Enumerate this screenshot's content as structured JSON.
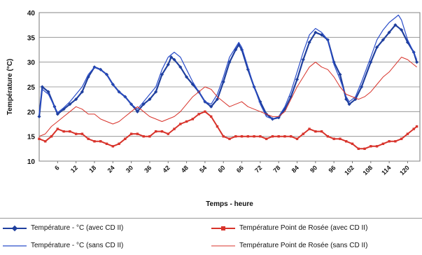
{
  "chart_data": {
    "type": "line",
    "ylabel": "Température (°C)",
    "xlabel": "Temps - heure",
    "xlim": [
      0,
      124
    ],
    "ylim": [
      10,
      40
    ],
    "yticks": [
      "10",
      "15",
      "20",
      "25",
      "30",
      "35",
      "40"
    ],
    "xticks": [
      "6",
      "12",
      "18",
      "24",
      "30",
      "36",
      "42",
      "48",
      "54",
      "60",
      "66",
      "72",
      "78",
      "84",
      "90",
      "96",
      "102",
      "108",
      "114",
      "120"
    ],
    "grid": true,
    "legend_position": "bottom",
    "series": [
      {
        "name": "Température - °C (avec CD II)",
        "color": "#1f3f9e",
        "marker": "diamond",
        "points": [
          [
            0,
            19
          ],
          [
            1,
            25
          ],
          [
            3,
            24
          ],
          [
            5,
            21
          ],
          [
            6,
            19.5
          ],
          [
            8,
            20.5
          ],
          [
            10,
            21.5
          ],
          [
            12,
            22.5
          ],
          [
            14,
            24
          ],
          [
            16,
            27
          ],
          [
            18,
            29
          ],
          [
            20,
            28.5
          ],
          [
            22,
            27.5
          ],
          [
            24,
            25.5
          ],
          [
            26,
            24
          ],
          [
            28,
            23
          ],
          [
            30,
            21.5
          ],
          [
            32,
            20
          ],
          [
            34,
            21.5
          ],
          [
            36,
            22.5
          ],
          [
            38,
            24
          ],
          [
            40,
            27.5
          ],
          [
            42,
            29.5
          ],
          [
            43,
            31
          ],
          [
            44,
            30.5
          ],
          [
            46,
            29
          ],
          [
            48,
            27
          ],
          [
            50,
            25.5
          ],
          [
            52,
            24
          ],
          [
            54,
            22
          ],
          [
            56,
            21
          ],
          [
            58,
            22.5
          ],
          [
            60,
            26
          ],
          [
            62,
            30
          ],
          [
            64,
            32.5
          ],
          [
            65,
            33.5
          ],
          [
            66,
            32.5
          ],
          [
            68,
            28.5
          ],
          [
            70,
            25
          ],
          [
            72,
            22
          ],
          [
            74,
            19.5
          ],
          [
            76,
            18.5
          ],
          [
            78,
            18.8
          ],
          [
            80,
            20.5
          ],
          [
            82,
            23
          ],
          [
            84,
            26.5
          ],
          [
            86,
            30.5
          ],
          [
            88,
            34
          ],
          [
            90,
            36
          ],
          [
            92,
            35.5
          ],
          [
            94,
            34.5
          ],
          [
            96,
            30
          ],
          [
            98,
            27.5
          ],
          [
            100,
            22.5
          ],
          [
            101,
            21.5
          ],
          [
            103,
            22.5
          ],
          [
            105,
            25
          ],
          [
            108,
            30
          ],
          [
            110,
            33
          ],
          [
            112,
            34.5
          ],
          [
            114,
            36
          ],
          [
            116,
            37.5
          ],
          [
            118,
            36.5
          ],
          [
            120,
            34
          ],
          [
            122,
            32
          ],
          [
            123,
            30
          ]
        ]
      },
      {
        "name": "Température - °C (sans CD II)",
        "color": "#2a4dc9",
        "marker": "none",
        "points": [
          [
            0,
            19.5
          ],
          [
            1,
            24.5
          ],
          [
            3,
            23.5
          ],
          [
            5,
            21
          ],
          [
            6,
            19.8
          ],
          [
            8,
            20.8
          ],
          [
            10,
            22
          ],
          [
            12,
            23.5
          ],
          [
            14,
            25
          ],
          [
            16,
            27.5
          ],
          [
            18,
            29
          ],
          [
            20,
            28.5
          ],
          [
            22,
            27.5
          ],
          [
            24,
            25.5
          ],
          [
            26,
            24
          ],
          [
            28,
            23
          ],
          [
            30,
            21.5
          ],
          [
            32,
            20.5
          ],
          [
            34,
            22
          ],
          [
            36,
            23.5
          ],
          [
            38,
            25
          ],
          [
            40,
            28.5
          ],
          [
            42,
            31
          ],
          [
            44,
            32
          ],
          [
            46,
            31
          ],
          [
            48,
            28.5
          ],
          [
            50,
            26
          ],
          [
            52,
            24
          ],
          [
            54,
            22
          ],
          [
            56,
            21.5
          ],
          [
            58,
            23.5
          ],
          [
            60,
            27
          ],
          [
            62,
            31
          ],
          [
            64,
            33
          ],
          [
            65,
            34
          ],
          [
            66,
            33
          ],
          [
            68,
            29
          ],
          [
            70,
            25
          ],
          [
            72,
            21.5
          ],
          [
            74,
            19
          ],
          [
            76,
            18.5
          ],
          [
            78,
            19
          ],
          [
            80,
            21
          ],
          [
            82,
            24
          ],
          [
            84,
            28
          ],
          [
            86,
            32
          ],
          [
            88,
            35.5
          ],
          [
            90,
            36.8
          ],
          [
            92,
            36
          ],
          [
            94,
            34.5
          ],
          [
            96,
            29.5
          ],
          [
            98,
            26.5
          ],
          [
            100,
            23
          ],
          [
            101,
            22
          ],
          [
            103,
            23
          ],
          [
            105,
            26
          ],
          [
            108,
            31
          ],
          [
            110,
            34.5
          ],
          [
            112,
            36.5
          ],
          [
            114,
            38
          ],
          [
            116,
            39
          ],
          [
            117,
            39.5
          ],
          [
            118,
            38.5
          ],
          [
            120,
            34.5
          ],
          [
            122,
            32
          ],
          [
            123,
            30.5
          ]
        ]
      },
      {
        "name": "Température Point de Rosée (avec CD II)",
        "color": "#d8332b",
        "marker": "square",
        "points": [
          [
            0,
            14.5
          ],
          [
            2,
            14
          ],
          [
            4,
            15
          ],
          [
            6,
            16.5
          ],
          [
            8,
            16
          ],
          [
            10,
            16
          ],
          [
            12,
            15.5
          ],
          [
            14,
            15.5
          ],
          [
            16,
            14.5
          ],
          [
            18,
            14
          ],
          [
            20,
            14
          ],
          [
            22,
            13.5
          ],
          [
            24,
            13
          ],
          [
            26,
            13.5
          ],
          [
            28,
            14.5
          ],
          [
            30,
            15.5
          ],
          [
            32,
            15.5
          ],
          [
            34,
            15
          ],
          [
            36,
            15
          ],
          [
            38,
            16
          ],
          [
            40,
            16
          ],
          [
            42,
            15.5
          ],
          [
            44,
            16.5
          ],
          [
            46,
            17.5
          ],
          [
            48,
            18
          ],
          [
            50,
            18.5
          ],
          [
            52,
            19.5
          ],
          [
            54,
            20
          ],
          [
            56,
            19
          ],
          [
            58,
            17
          ],
          [
            60,
            15
          ],
          [
            62,
            14.5
          ],
          [
            64,
            15
          ],
          [
            66,
            15
          ],
          [
            68,
            15
          ],
          [
            70,
            15
          ],
          [
            72,
            15
          ],
          [
            74,
            14.5
          ],
          [
            76,
            15
          ],
          [
            78,
            15
          ],
          [
            80,
            15
          ],
          [
            82,
            15
          ],
          [
            84,
            14.5
          ],
          [
            86,
            15.5
          ],
          [
            88,
            16.5
          ],
          [
            90,
            16
          ],
          [
            92,
            16
          ],
          [
            94,
            15
          ],
          [
            96,
            14.5
          ],
          [
            98,
            14.5
          ],
          [
            100,
            14
          ],
          [
            102,
            13.5
          ],
          [
            104,
            12.5
          ],
          [
            106,
            12.5
          ],
          [
            108,
            13
          ],
          [
            110,
            13
          ],
          [
            112,
            13.5
          ],
          [
            114,
            14
          ],
          [
            116,
            14
          ],
          [
            118,
            14.5
          ],
          [
            120,
            15.5
          ],
          [
            122,
            16.5
          ],
          [
            123,
            17
          ]
        ]
      },
      {
        "name": "Température Point de Rosée (sans CD II)",
        "color": "#d8332b",
        "marker": "none",
        "points": [
          [
            0,
            15
          ],
          [
            2,
            15.5
          ],
          [
            4,
            17
          ],
          [
            6,
            18
          ],
          [
            8,
            19
          ],
          [
            10,
            20
          ],
          [
            12,
            21
          ],
          [
            14,
            20.5
          ],
          [
            16,
            19.5
          ],
          [
            18,
            19.5
          ],
          [
            20,
            18.5
          ],
          [
            22,
            18
          ],
          [
            24,
            17.5
          ],
          [
            26,
            18
          ],
          [
            28,
            19
          ],
          [
            30,
            20
          ],
          [
            32,
            21
          ],
          [
            34,
            20
          ],
          [
            36,
            19
          ],
          [
            38,
            18.5
          ],
          [
            40,
            18
          ],
          [
            42,
            18.5
          ],
          [
            44,
            19
          ],
          [
            46,
            20
          ],
          [
            48,
            21.5
          ],
          [
            50,
            23
          ],
          [
            52,
            24
          ],
          [
            54,
            25
          ],
          [
            56,
            24.5
          ],
          [
            58,
            23
          ],
          [
            60,
            22
          ],
          [
            62,
            21
          ],
          [
            64,
            21.5
          ],
          [
            66,
            22
          ],
          [
            68,
            21
          ],
          [
            70,
            20.5
          ],
          [
            72,
            20
          ],
          [
            74,
            19.5
          ],
          [
            76,
            19
          ],
          [
            78,
            19
          ],
          [
            80,
            20
          ],
          [
            82,
            22.5
          ],
          [
            84,
            25
          ],
          [
            86,
            27
          ],
          [
            88,
            29
          ],
          [
            90,
            30
          ],
          [
            92,
            29
          ],
          [
            94,
            28.5
          ],
          [
            96,
            27
          ],
          [
            98,
            25
          ],
          [
            100,
            23.5
          ],
          [
            102,
            23
          ],
          [
            104,
            22.5
          ],
          [
            106,
            23
          ],
          [
            108,
            24
          ],
          [
            110,
            25.5
          ],
          [
            112,
            27
          ],
          [
            114,
            28
          ],
          [
            116,
            29.5
          ],
          [
            118,
            31
          ],
          [
            120,
            30.5
          ],
          [
            122,
            29.5
          ],
          [
            123,
            29
          ]
        ]
      }
    ]
  }
}
